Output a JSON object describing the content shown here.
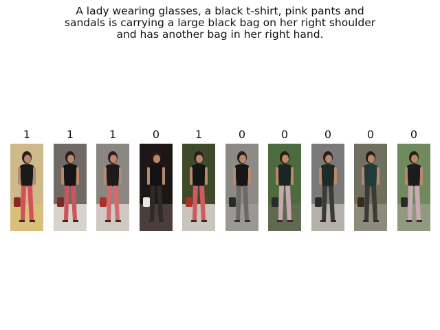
{
  "caption": {
    "lines": [
      "A lady wearing glasses, a black t-shirt, pink pants and",
      "sandals is carrying a large black bag on her right shoulder",
      "and has another bag in her right hand."
    ]
  },
  "gallery": {
    "images": [
      {
        "label": "1",
        "bg": "#cdb98a",
        "shirt": "#1a1a1a",
        "pants": "#d2505a",
        "floor": "#d9c07a",
        "bag": "#8a2a20"
      },
      {
        "label": "1",
        "bg": "#6f6a66",
        "shirt": "#151515",
        "pants": "#c9565c",
        "floor": "#d7d2cc",
        "bag": "#7a2a20"
      },
      {
        "label": "1",
        "bg": "#8a8782",
        "shirt": "#1b1b1b",
        "pants": "#d36a6e",
        "floor": "#cfc9c2",
        "bag": "#b0302a"
      },
      {
        "label": "0",
        "bg": "#1c1616",
        "shirt": "#121212",
        "pants": "#2e2a2a",
        "floor": "#4a3d3c",
        "bag": "#e8e8e8"
      },
      {
        "label": "1",
        "bg": "#3f4a2a",
        "shirt": "#151515",
        "pants": "#cf5b62",
        "floor": "#c9c4bd",
        "bag": "#a83228"
      },
      {
        "label": "0",
        "bg": "#8c8a86",
        "shirt": "#161616",
        "pants": "#6b6a68",
        "floor": "#9a9894",
        "bag": "#2a2a2a"
      },
      {
        "label": "0",
        "bg": "#4c6b3e",
        "shirt": "#1e2424",
        "pants": "#c9a7b1",
        "floor": "#5f6a50",
        "bag": "#2a2a2a"
      },
      {
        "label": "0",
        "bg": "#7c7a78",
        "shirt": "#1f2b28",
        "pants": "#3a3a36",
        "floor": "#b5b1aa",
        "bag": "#2a2a2a"
      },
      {
        "label": "0",
        "bg": "#6f7060",
        "shirt": "#1f3b3a",
        "pants": "#3b3a33",
        "floor": "#8d8b7c",
        "bag": "#3a2a20"
      },
      {
        "label": "0",
        "bg": "#6f8a5c",
        "shirt": "#1c1c1c",
        "pants": "#c8a9b4",
        "floor": "#8f9a80",
        "bag": "#2a2a2a"
      }
    ]
  }
}
